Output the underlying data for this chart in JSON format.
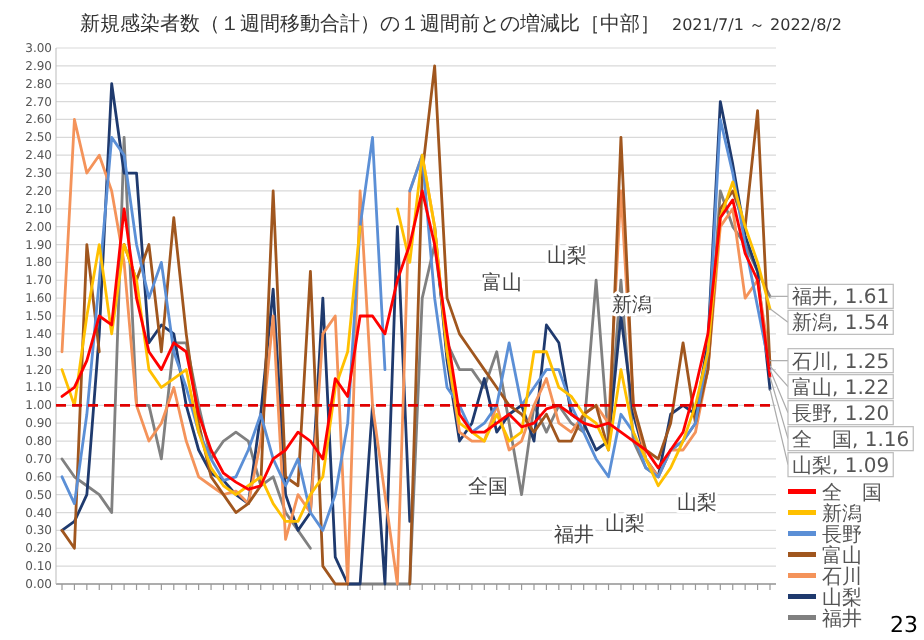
{
  "chart_data": {
    "type": "line",
    "title": "新規感染者数（１週間移動合計）の１週間前との増減比［中部］",
    "subtitle": "2021/7/1 ～ 2022/8/2",
    "categories": [
      null,
      null,
      null,
      null,
      null,
      null,
      null,
      null,
      null,
      null,
      null,
      null,
      null,
      null,
      null,
      null,
      null,
      null,
      null,
      null,
      null,
      null,
      null,
      null,
      null,
      null,
      null,
      null,
      null,
      null,
      null,
      null,
      null,
      null,
      null,
      null,
      null,
      null,
      null,
      null,
      null,
      null,
      null,
      null,
      null,
      null,
      null,
      null,
      null,
      null,
      null,
      null,
      null,
      null,
      null,
      null,
      null,
      null
    ],
    "ylim": [
      0,
      3
    ],
    "yticks": [
      {
        "value": 0,
        "label": "0.00"
      },
      {
        "value": 0.1,
        "label": "0.10"
      },
      {
        "value": 0.2,
        "label": "0.20"
      },
      {
        "value": 0.3,
        "label": "0.30"
      },
      {
        "value": 0.4,
        "label": "0.40"
      },
      {
        "value": 0.5,
        "label": "0.50"
      },
      {
        "value": 0.6,
        "label": "0.60"
      },
      {
        "value": 0.7,
        "label": "0.70"
      },
      {
        "value": 0.8,
        "label": "0.80"
      },
      {
        "value": 0.9,
        "label": "0.90"
      },
      {
        "value": 1,
        "label": "1.00"
      },
      {
        "value": 1.1,
        "label": "1.10"
      },
      {
        "value": 1.2,
        "label": "1.20"
      },
      {
        "value": 1.3,
        "label": "1.30"
      },
      {
        "value": 1.4,
        "label": "1.40"
      },
      {
        "value": 1.5,
        "label": "1.50"
      },
      {
        "value": 1.6,
        "label": "1.60"
      },
      {
        "value": 1.7,
        "label": "1.70"
      },
      {
        "value": 1.8,
        "label": "1.80"
      },
      {
        "value": 1.9,
        "label": "1.90"
      },
      {
        "value": 2,
        "label": "2.00"
      },
      {
        "value": 2.1,
        "label": "2.10"
      },
      {
        "value": 2.2,
        "label": "2.20"
      },
      {
        "value": 2.3,
        "label": "2.30"
      },
      {
        "value": 2.4,
        "label": "2.40"
      },
      {
        "value": 2.5,
        "label": "2.50"
      },
      {
        "value": 2.6,
        "label": "2.60"
      },
      {
        "value": 2.7,
        "label": "2.70"
      },
      {
        "value": 2.8,
        "label": "2.80"
      },
      {
        "value": 2.9,
        "label": "2.90"
      },
      {
        "value": 3,
        "label": "3.00"
      }
    ],
    "grid": "y",
    "legend": "bottom right",
    "line_style": "solid",
    "marker": "none",
    "ref_lines": [
      {
        "axis": "y",
        "value": 1,
        "color": "#e00000",
        "line_style": "dashed"
      }
    ],
    "series": [
      {
        "name": "全　国",
        "color": "#ff0000",
        "values": [
          1.05,
          1.1,
          1.25,
          1.5,
          1.45,
          2.1,
          1.6,
          1.3,
          1.2,
          1.35,
          1.3,
          0.95,
          0.75,
          0.62,
          0.57,
          0.53,
          0.55,
          0.7,
          0.75,
          0.85,
          0.8,
          0.7,
          1.15,
          1.05,
          1.5,
          1.5,
          1.4,
          1.7,
          1.9,
          2.2,
          1.9,
          1.4,
          0.95,
          0.85,
          0.85,
          0.9,
          0.95,
          0.88,
          0.9,
          0.98,
          1.0,
          0.95,
          0.9,
          0.88,
          0.9,
          0.85,
          0.8,
          0.75,
          0.65,
          0.75,
          0.85,
          1.1,
          1.4,
          2.05,
          2.15,
          1.85,
          1.7,
          1.16
        ],
        "value_labels": [
          null,
          null,
          null,
          null,
          null,
          null,
          null,
          null,
          null,
          null,
          null,
          null,
          null,
          null,
          null,
          null,
          null,
          null,
          null,
          null,
          null,
          null,
          null,
          null,
          null,
          null,
          null,
          null,
          null,
          null,
          null,
          null,
          null,
          null,
          null,
          null,
          null,
          null,
          null,
          null,
          null,
          null,
          null,
          null,
          null,
          null,
          null,
          null,
          null,
          null,
          null,
          null,
          null,
          null,
          null,
          null,
          null,
          "全　国, 1.16"
        ]
      },
      {
        "name": "新潟",
        "color": "#ffc000",
        "values": [
          1.2,
          1.0,
          1.5,
          1.9,
          1.4,
          1.9,
          1.7,
          1.2,
          1.1,
          1.15,
          1.2,
          0.85,
          0.65,
          0.55,
          0.5,
          0.55,
          0.6,
          0.45,
          0.35,
          0.35,
          0.5,
          0.6,
          1.1,
          1.3,
          2.0,
          null,
          null,
          2.1,
          1.8,
          2.4,
          2.0,
          1.3,
          0.9,
          0.85,
          0.8,
          0.95,
          0.8,
          0.85,
          1.3,
          1.3,
          1.1,
          1.05,
          0.95,
          0.9,
          0.75,
          1.2,
          0.85,
          0.7,
          0.55,
          0.65,
          0.8,
          1.0,
          1.3,
          2.05,
          2.25,
          2.0,
          1.8,
          1.54
        ],
        "value_labels": [
          null,
          null,
          null,
          null,
          null,
          null,
          null,
          null,
          null,
          null,
          null,
          null,
          null,
          null,
          null,
          null,
          null,
          null,
          null,
          null,
          null,
          null,
          null,
          null,
          null,
          null,
          null,
          null,
          null,
          null,
          null,
          null,
          null,
          null,
          null,
          null,
          null,
          null,
          null,
          null,
          null,
          null,
          null,
          null,
          null,
          null,
          null,
          null,
          null,
          null,
          null,
          null,
          null,
          null,
          null,
          null,
          null,
          "新潟, 1.54"
        ]
      },
      {
        "name": "長野",
        "color": "#5b8fd6",
        "values": [
          0.6,
          0.45,
          0.95,
          1.7,
          2.5,
          2.4,
          1.9,
          1.6,
          1.8,
          1.3,
          1.1,
          0.85,
          0.7,
          0.58,
          0.6,
          0.75,
          0.95,
          0.7,
          0.55,
          0.7,
          0.4,
          0.3,
          0.5,
          0.9,
          2.0,
          2.5,
          1.2,
          null,
          2.2,
          2.4,
          1.6,
          1.1,
          1.0,
          0.85,
          0.9,
          1.0,
          1.35,
          1.0,
          1.1,
          1.2,
          1.2,
          1.0,
          0.85,
          0.7,
          0.6,
          0.95,
          0.85,
          0.65,
          0.6,
          0.75,
          0.8,
          0.9,
          1.3,
          2.6,
          2.3,
          1.9,
          1.55,
          1.2
        ],
        "value_labels": [
          null,
          null,
          null,
          null,
          null,
          null,
          null,
          null,
          null,
          null,
          null,
          null,
          null,
          null,
          null,
          null,
          null,
          null,
          null,
          null,
          null,
          null,
          null,
          null,
          null,
          null,
          null,
          null,
          null,
          null,
          null,
          null,
          null,
          null,
          null,
          null,
          null,
          null,
          null,
          null,
          null,
          null,
          null,
          null,
          null,
          null,
          null,
          null,
          null,
          null,
          null,
          null,
          null,
          null,
          null,
          null,
          null,
          "長野, 1.20"
        ]
      },
      {
        "name": "富山",
        "color": "#a0561e",
        "values": [
          0.3,
          0.2,
          1.9,
          1.3,
          null,
          1.9,
          1.7,
          1.9,
          1.3,
          2.05,
          1.4,
          0.9,
          0.6,
          0.5,
          0.4,
          0.45,
          0.55,
          2.2,
          0.6,
          0.55,
          1.75,
          0.1,
          0.0,
          0.0,
          null,
          null,
          null,
          null,
          0.0,
          2.3,
          2.9,
          1.6,
          1.4,
          1.3,
          1.2,
          1.1,
          1.0,
          0.95,
          0.85,
          0.95,
          0.8,
          0.8,
          0.95,
          1.0,
          0.75,
          2.5,
          1.0,
          0.75,
          0.7,
          0.9,
          1.35,
          0.9,
          1.2,
          2.1,
          2.2,
          2.0,
          2.65,
          1.22
        ],
        "value_labels": [
          null,
          null,
          null,
          null,
          null,
          null,
          null,
          null,
          null,
          null,
          null,
          null,
          null,
          null,
          null,
          null,
          null,
          null,
          null,
          null,
          null,
          null,
          null,
          null,
          null,
          null,
          null,
          null,
          null,
          null,
          null,
          null,
          null,
          null,
          null,
          null,
          null,
          null,
          null,
          null,
          null,
          null,
          null,
          null,
          null,
          null,
          null,
          null,
          null,
          null,
          null,
          null,
          null,
          null,
          null,
          null,
          null,
          "富山, 1.22"
        ]
      },
      {
        "name": "石川",
        "color": "#f4935a",
        "values": [
          1.3,
          2.6,
          2.3,
          2.4,
          2.2,
          1.8,
          1.0,
          0.8,
          0.9,
          1.1,
          0.8,
          0.6,
          0.55,
          0.5,
          0.52,
          0.45,
          0.8,
          1.5,
          0.25,
          0.5,
          0.4,
          1.4,
          1.5,
          0.0,
          2.2,
          1.0,
          0.5,
          0.0,
          2.2,
          2.4,
          2.0,
          1.3,
          0.85,
          0.8,
          0.8,
          1.0,
          0.75,
          0.8,
          1.0,
          1.15,
          0.9,
          0.85,
          0.95,
          1.0,
          0.9,
          2.2,
          1.0,
          0.7,
          0.6,
          0.75,
          0.75,
          0.85,
          1.2,
          2.0,
          2.1,
          1.6,
          1.7,
          1.25
        ],
        "value_labels": [
          null,
          null,
          null,
          null,
          null,
          null,
          null,
          null,
          null,
          null,
          null,
          null,
          null,
          null,
          null,
          null,
          null,
          null,
          null,
          null,
          null,
          null,
          null,
          null,
          null,
          null,
          null,
          null,
          null,
          null,
          null,
          null,
          null,
          null,
          null,
          null,
          null,
          null,
          null,
          null,
          null,
          null,
          null,
          null,
          null,
          null,
          null,
          null,
          null,
          null,
          null,
          null,
          null,
          null,
          null,
          null,
          null,
          "石川, 1.25"
        ]
      },
      {
        "name": "山梨",
        "color": "#1f3a6e",
        "values": [
          0.3,
          0.35,
          0.5,
          1.4,
          2.8,
          2.3,
          2.3,
          1.35,
          1.45,
          1.4,
          1.0,
          0.75,
          0.62,
          0.58,
          0.5,
          0.45,
          0.95,
          1.65,
          0.5,
          0.3,
          0.4,
          1.6,
          0.15,
          0.0,
          0.0,
          1.0,
          0.0,
          2.0,
          0.35,
          null,
          2.0,
          1.25,
          0.8,
          0.9,
          1.15,
          0.85,
          0.95,
          1.0,
          0.8,
          1.45,
          1.35,
          0.95,
          0.9,
          0.75,
          0.8,
          1.5,
          0.95,
          0.7,
          0.6,
          0.95,
          1.0,
          0.95,
          1.35,
          2.7,
          2.35,
          1.95,
          1.75,
          1.09
        ],
        "value_labels": [
          null,
          null,
          null,
          null,
          null,
          null,
          null,
          null,
          null,
          null,
          null,
          null,
          null,
          null,
          null,
          null,
          null,
          null,
          null,
          null,
          null,
          null,
          null,
          null,
          null,
          null,
          null,
          null,
          null,
          null,
          null,
          null,
          null,
          null,
          null,
          null,
          null,
          null,
          null,
          null,
          null,
          null,
          null,
          null,
          null,
          null,
          null,
          null,
          null,
          null,
          null,
          null,
          null,
          null,
          null,
          null,
          null,
          "山梨, 1.09"
        ]
      },
      {
        "name": "福井",
        "color": "#808080",
        "values": [
          0.7,
          0.6,
          0.55,
          0.5,
          0.4,
          2.5,
          1.0,
          1.0,
          0.7,
          1.35,
          1.35,
          1.0,
          0.7,
          0.8,
          0.85,
          0.8,
          0.55,
          0.6,
          0.4,
          0.3,
          0.2,
          null,
          null,
          0.0,
          0.0,
          0.0,
          0.0,
          0.0,
          0.0,
          1.6,
          1.9,
          1.35,
          1.2,
          1.2,
          1.1,
          1.3,
          0.9,
          0.5,
          1.0,
          0.85,
          1.0,
          0.9,
          0.85,
          1.7,
          0.8,
          1.7,
          0.8,
          0.65,
          0.6,
          0.75,
          0.8,
          0.9,
          1.2,
          2.2,
          2.0,
          1.9,
          1.75,
          1.61
        ],
        "value_labels": [
          null,
          null,
          null,
          null,
          null,
          null,
          null,
          null,
          null,
          null,
          null,
          null,
          null,
          null,
          null,
          null,
          null,
          null,
          null,
          null,
          null,
          null,
          null,
          null,
          null,
          null,
          null,
          null,
          null,
          null,
          null,
          null,
          null,
          null,
          null,
          null,
          null,
          null,
          null,
          null,
          null,
          null,
          null,
          null,
          null,
          null,
          null,
          null,
          null,
          null,
          null,
          null,
          null,
          null,
          null,
          null,
          null,
          "福井, 1.61"
        ]
      }
    ],
    "annotations": [
      "富山",
      "山梨",
      "新潟",
      "全国",
      "福井",
      "山梨",
      "山梨",
      "23"
    ]
  }
}
